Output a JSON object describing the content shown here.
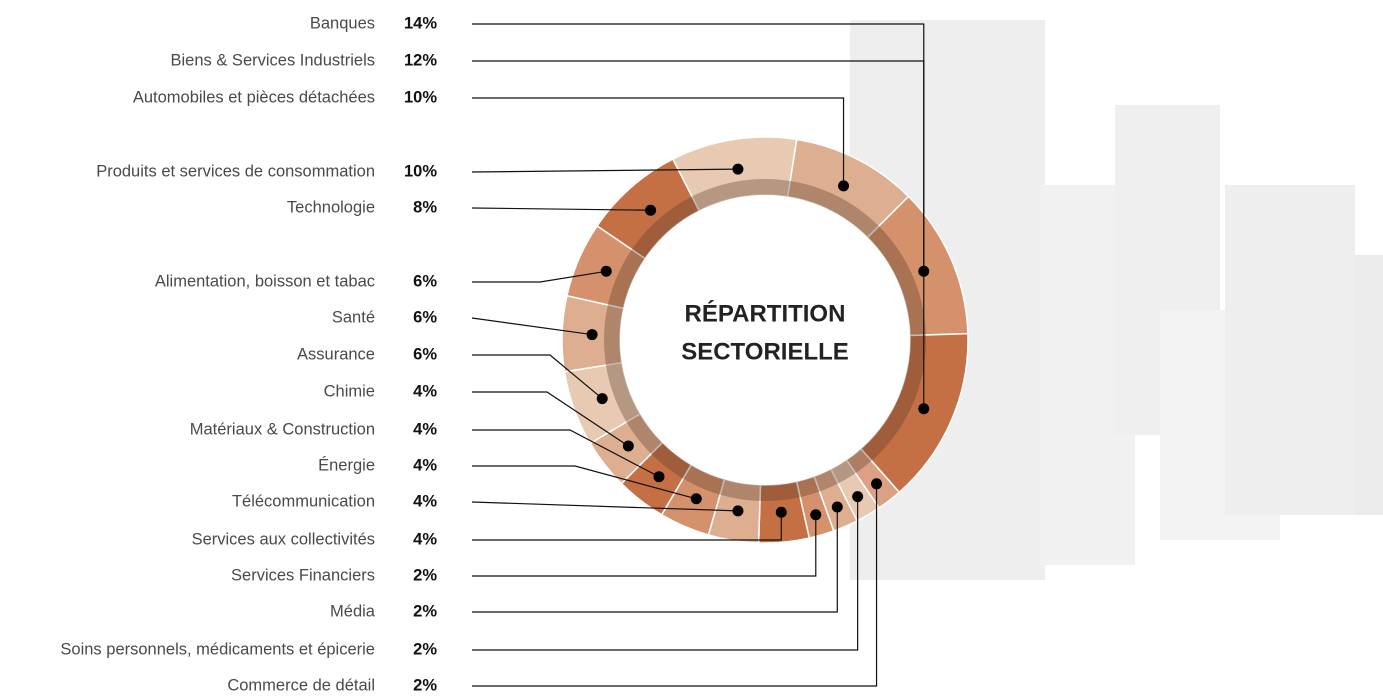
{
  "chart_data": {
    "type": "donut",
    "title": [
      "RÉPARTITION",
      "SECTORIELLE"
    ],
    "categories": [
      "Banques",
      "Biens & Services Industriels",
      "Automobiles et pièces détachées",
      "Produits et services de consommation",
      "Technologie",
      "Alimentation, boisson et tabac",
      "Santé",
      "Assurance",
      "Chimie",
      "Matériaux & Construction",
      "Énergie",
      "Télécommunication",
      "Services aux collectivités",
      "Services Financiers",
      "Média",
      "Soins personnels, médicaments et épicerie",
      "Commerce de détail"
    ],
    "values": [
      14,
      12,
      10,
      10,
      8,
      6,
      6,
      6,
      4,
      4,
      4,
      4,
      4,
      2,
      2,
      2,
      2
    ],
    "value_labels": [
      "14%",
      "12%",
      "10%",
      "10%",
      "8%",
      "6%",
      "6%",
      "6%",
      "4%",
      "4%",
      "4%",
      "4%",
      "4%",
      "2%",
      "2%",
      "2%",
      "2%"
    ],
    "colors": [
      "#c56f45",
      "#d4916b",
      "#deae91",
      "#e8c9b2",
      "#c56f45",
      "#d4916b",
      "#deae91",
      "#e8c9b2",
      "#deae91",
      "#c56f45",
      "#d4916b",
      "#deae91",
      "#c56f45",
      "#d4916b",
      "#deae91",
      "#e8c9b2",
      "#dca185"
    ]
  }
}
